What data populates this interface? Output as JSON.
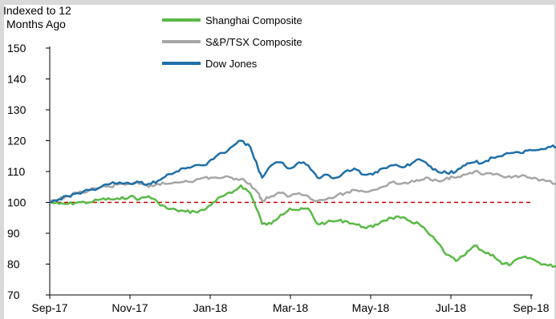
{
  "chart_data": {
    "type": "line",
    "ylabel": [
      "Indexed to 12",
      "Months Ago"
    ],
    "ylim": [
      70,
      150
    ],
    "yticks": [
      70,
      80,
      90,
      100,
      110,
      120,
      130,
      140,
      150
    ],
    "x_tick_labels": [
      "Sep-17",
      "Nov-17",
      "Jan-18",
      "Mar-18",
      "May-18",
      "Jul-18",
      "Sep-18"
    ],
    "reference_line": {
      "value": 100,
      "style": "dashed",
      "color": "#cc0000"
    },
    "legend_position": "top-center",
    "series": [
      {
        "name": "Shanghai Composite",
        "color": "#5ab946",
        "points": [
          [
            "2017-09-01",
            100
          ],
          [
            "2017-09-08",
            99.5
          ],
          [
            "2017-09-15",
            99.5
          ],
          [
            "2017-09-22",
            100
          ],
          [
            "2017-10-01",
            100
          ],
          [
            "2017-10-10",
            101
          ],
          [
            "2017-10-17",
            101
          ],
          [
            "2017-10-24",
            101
          ],
          [
            "2017-11-01",
            102
          ],
          [
            "2017-11-08",
            101
          ],
          [
            "2017-11-15",
            102
          ],
          [
            "2017-11-22",
            100
          ],
          [
            "2017-11-29",
            98
          ],
          [
            "2017-12-06",
            97.5
          ],
          [
            "2017-12-13",
            97
          ],
          [
            "2017-12-20",
            97
          ],
          [
            "2017-12-27",
            97.5
          ],
          [
            "2018-01-03",
            100
          ],
          [
            "2018-01-10",
            102
          ],
          [
            "2018-01-17",
            103
          ],
          [
            "2018-01-24",
            105.5
          ],
          [
            "2018-01-31",
            103
          ],
          [
            "2018-02-06",
            97
          ],
          [
            "2018-02-09",
            93
          ],
          [
            "2018-02-16",
            93
          ],
          [
            "2018-02-23",
            96
          ],
          [
            "2018-03-02",
            98
          ],
          [
            "2018-03-09",
            97.5
          ],
          [
            "2018-03-16",
            98
          ],
          [
            "2018-03-23",
            93
          ],
          [
            "2018-03-30",
            93.5
          ],
          [
            "2018-04-06",
            94
          ],
          [
            "2018-04-13",
            94
          ],
          [
            "2018-04-20",
            93
          ],
          [
            "2018-04-27",
            92
          ],
          [
            "2018-05-04",
            92
          ],
          [
            "2018-05-11",
            94
          ],
          [
            "2018-05-18",
            95
          ],
          [
            "2018-05-25",
            95
          ],
          [
            "2018-06-01",
            94
          ],
          [
            "2018-06-08",
            93
          ],
          [
            "2018-06-15",
            90
          ],
          [
            "2018-06-22",
            87
          ],
          [
            "2018-06-29",
            83
          ],
          [
            "2018-07-06",
            81
          ],
          [
            "2018-07-13",
            83
          ],
          [
            "2018-07-20",
            86
          ],
          [
            "2018-07-27",
            84
          ],
          [
            "2018-08-03",
            83
          ],
          [
            "2018-08-10",
            80
          ],
          [
            "2018-08-17",
            80
          ],
          [
            "2018-08-24",
            82
          ],
          [
            "2018-08-31",
            82
          ],
          [
            "2018-09-07",
            80.5
          ],
          [
            "2018-09-14",
            79.5
          ],
          [
            "2018-09-21",
            79.5
          ]
        ]
      },
      {
        "name": "S&P/TSX Composite",
        "color": "#a6a6a6",
        "points": [
          [
            "2017-09-01",
            100
          ],
          [
            "2017-09-08",
            101
          ],
          [
            "2017-09-15",
            102
          ],
          [
            "2017-09-22",
            103
          ],
          [
            "2017-10-01",
            104
          ],
          [
            "2017-10-10",
            105
          ],
          [
            "2017-10-17",
            105
          ],
          [
            "2017-10-24",
            106
          ],
          [
            "2017-11-01",
            106
          ],
          [
            "2017-11-08",
            106
          ],
          [
            "2017-11-15",
            105
          ],
          [
            "2017-11-22",
            106
          ],
          [
            "2017-11-29",
            106
          ],
          [
            "2017-12-06",
            106.5
          ],
          [
            "2017-12-13",
            107
          ],
          [
            "2017-12-20",
            107
          ],
          [
            "2017-12-27",
            108
          ],
          [
            "2018-01-03",
            108
          ],
          [
            "2018-01-10",
            108
          ],
          [
            "2018-01-17",
            108
          ],
          [
            "2018-01-24",
            107.5
          ],
          [
            "2018-01-31",
            106
          ],
          [
            "2018-02-06",
            103
          ],
          [
            "2018-02-09",
            100.5
          ],
          [
            "2018-02-16",
            102
          ],
          [
            "2018-02-23",
            103
          ],
          [
            "2018-03-02",
            102
          ],
          [
            "2018-03-09",
            103
          ],
          [
            "2018-03-16",
            102
          ],
          [
            "2018-03-23",
            100.5
          ],
          [
            "2018-03-30",
            101
          ],
          [
            "2018-04-06",
            102
          ],
          [
            "2018-04-13",
            103
          ],
          [
            "2018-04-20",
            104
          ],
          [
            "2018-04-27",
            103.5
          ],
          [
            "2018-05-04",
            104
          ],
          [
            "2018-05-11",
            105
          ],
          [
            "2018-05-18",
            106.5
          ],
          [
            "2018-05-25",
            106
          ],
          [
            "2018-06-01",
            106.5
          ],
          [
            "2018-06-08",
            107
          ],
          [
            "2018-06-15",
            108
          ],
          [
            "2018-06-22",
            107
          ],
          [
            "2018-06-29",
            108
          ],
          [
            "2018-07-06",
            108
          ],
          [
            "2018-07-13",
            109
          ],
          [
            "2018-07-20",
            110
          ],
          [
            "2018-07-27",
            109
          ],
          [
            "2018-08-03",
            109
          ],
          [
            "2018-08-10",
            108.5
          ],
          [
            "2018-08-17",
            108
          ],
          [
            "2018-08-24",
            108.5
          ],
          [
            "2018-08-31",
            108
          ],
          [
            "2018-09-07",
            107
          ],
          [
            "2018-09-14",
            107
          ],
          [
            "2018-09-21",
            106
          ]
        ]
      },
      {
        "name": "Dow Jones",
        "color": "#1f6fa8",
        "points": [
          [
            "2017-09-01",
            100
          ],
          [
            "2017-09-08",
            101
          ],
          [
            "2017-09-15",
            102
          ],
          [
            "2017-09-22",
            103
          ],
          [
            "2017-10-01",
            104
          ],
          [
            "2017-10-10",
            105
          ],
          [
            "2017-10-17",
            106
          ],
          [
            "2017-10-24",
            106.5
          ],
          [
            "2017-11-01",
            106
          ],
          [
            "2017-11-08",
            106.5
          ],
          [
            "2017-11-15",
            106
          ],
          [
            "2017-11-22",
            107
          ],
          [
            "2017-11-29",
            109
          ],
          [
            "2017-12-06",
            110
          ],
          [
            "2017-12-13",
            111
          ],
          [
            "2017-12-20",
            112
          ],
          [
            "2017-12-27",
            112
          ],
          [
            "2018-01-03",
            114
          ],
          [
            "2018-01-10",
            116
          ],
          [
            "2018-01-17",
            118
          ],
          [
            "2018-01-24",
            120
          ],
          [
            "2018-01-31",
            118
          ],
          [
            "2018-02-06",
            111
          ],
          [
            "2018-02-09",
            108
          ],
          [
            "2018-02-16",
            112
          ],
          [
            "2018-02-23",
            113
          ],
          [
            "2018-03-02",
            111
          ],
          [
            "2018-03-09",
            113
          ],
          [
            "2018-03-16",
            112
          ],
          [
            "2018-03-23",
            108
          ],
          [
            "2018-03-30",
            109
          ],
          [
            "2018-04-06",
            108
          ],
          [
            "2018-04-13",
            110
          ],
          [
            "2018-04-20",
            111
          ],
          [
            "2018-04-27",
            109
          ],
          [
            "2018-05-04",
            109
          ],
          [
            "2018-05-11",
            111
          ],
          [
            "2018-05-18",
            112
          ],
          [
            "2018-05-25",
            111.5
          ],
          [
            "2018-06-01",
            112
          ],
          [
            "2018-06-08",
            114
          ],
          [
            "2018-06-15",
            112
          ],
          [
            "2018-06-22",
            110
          ],
          [
            "2018-06-29",
            109.5
          ],
          [
            "2018-07-06",
            110
          ],
          [
            "2018-07-13",
            112
          ],
          [
            "2018-07-20",
            113
          ],
          [
            "2018-07-27",
            113
          ],
          [
            "2018-08-03",
            114.5
          ],
          [
            "2018-08-10",
            115
          ],
          [
            "2018-08-17",
            116
          ],
          [
            "2018-08-24",
            116
          ],
          [
            "2018-08-31",
            117
          ],
          [
            "2018-09-07",
            117
          ],
          [
            "2018-09-14",
            118
          ],
          [
            "2018-09-21",
            118
          ]
        ]
      }
    ]
  }
}
